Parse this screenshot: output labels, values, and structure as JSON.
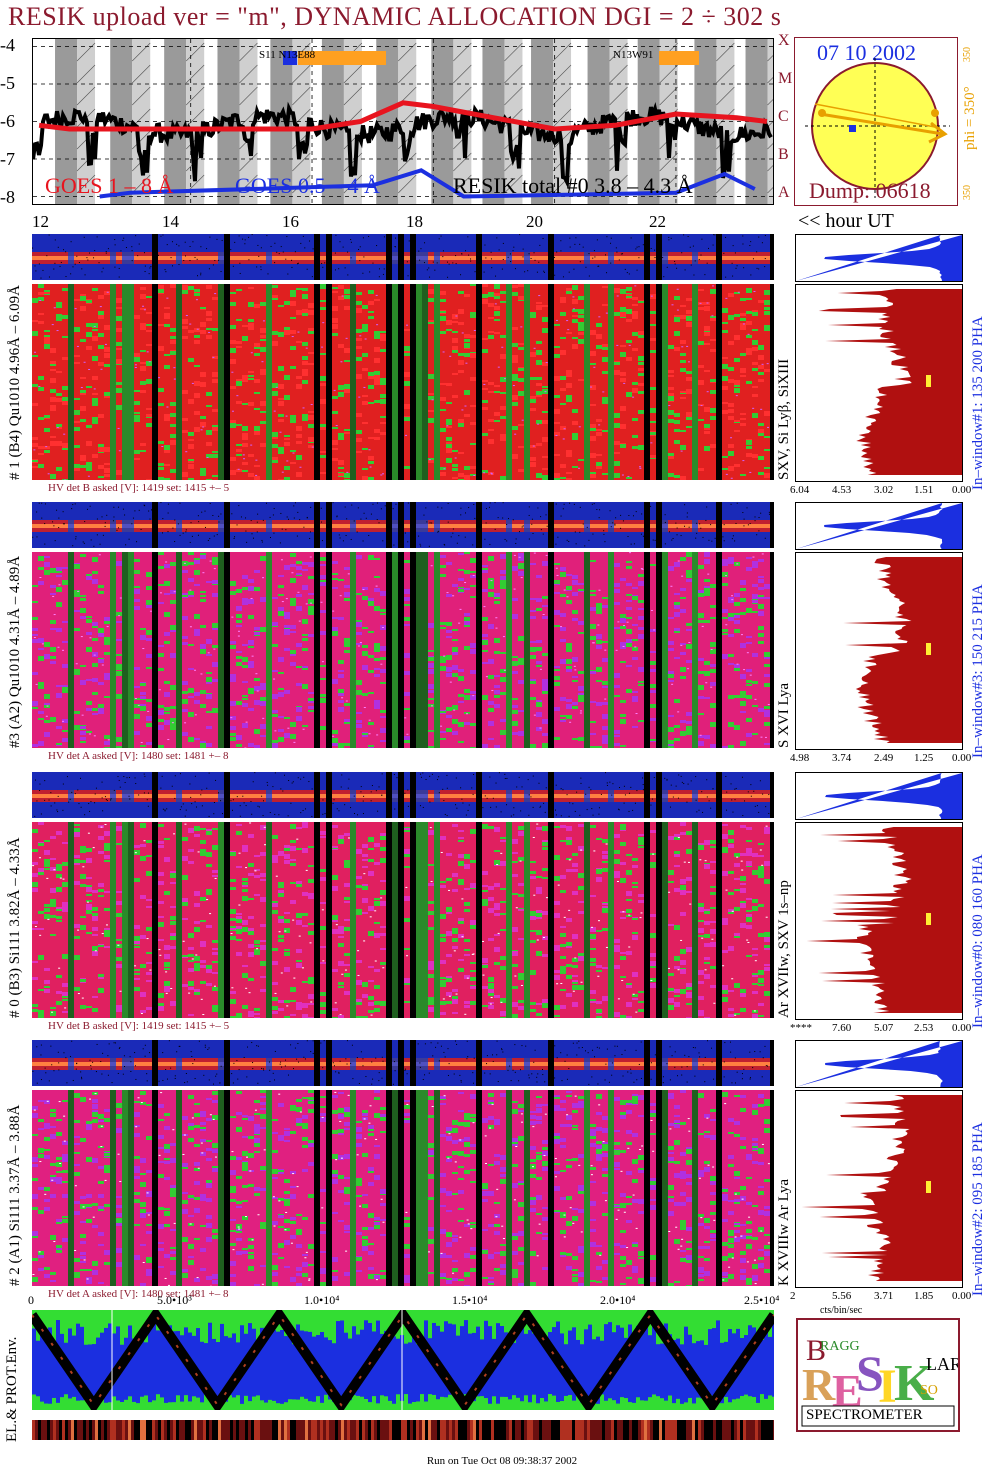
{
  "header": {
    "title": "RESIK upload ver = \"m\", DYNAMIC ALLOCATION  DGI =   2 ÷ 302 s"
  },
  "goes": {
    "yticks": [
      "-4",
      "-5",
      "-6",
      "-7",
      "-8"
    ],
    "legend_goes18": "GOES 1 – 8 Å",
    "legend_goes054": "GOES 0.5 – 4 Å",
    "legend_resik": "RESIK total #0  3.8 – 4.3 Å",
    "class_letters": [
      "X",
      "M",
      "C",
      "B",
      "A"
    ],
    "region_a": "S11 N13E88",
    "region_b": "N13W91",
    "colors": {
      "goes18": "#e8141e",
      "goes054": "#1b2fe0",
      "resik": "#000000"
    }
  },
  "sun": {
    "date": "07 10 2002",
    "phi": "phi = 350°",
    "phi_top": "350",
    "phi_bottom": "350",
    "dump": "Dump: 06618"
  },
  "time_axis": {
    "ticks": [
      "12",
      "14",
      "16",
      "18",
      "20",
      "22"
    ],
    "label": "<< hour UT"
  },
  "channels": [
    {
      "id": "b4",
      "ylabel": "# 1 (B4) Qu1010 4.96Å – 6.09Å",
      "lines_label": "SXV, Si Lyβ, SiXIII",
      "window_label": "In–window#1:  135 200 PHA",
      "hv": "HV det B asked [V]:  1419 set:  1415  +–     5",
      "xticks": [
        "6.04",
        "4.53",
        "3.02",
        "1.51",
        "0.00"
      ]
    },
    {
      "id": "a2",
      "ylabel": "#3 (A2) Qu1010  4.31Å – 4.89Å",
      "lines_label": "S XVI Lya",
      "window_label": "In–window#3:  150 215 PHA",
      "hv": "HV det A asked [V]:  1480 set:  1481  +–     8",
      "xticks": [
        "4.98",
        "3.74",
        "2.49",
        "1.25",
        "0.00"
      ]
    },
    {
      "id": "b3",
      "ylabel": "# 0 (B3) Si111  3.82Å – 4.33Å",
      "lines_label": "Ar XVIIw, SXV 1s–np",
      "window_label": "In–window#0:  080 160 PHA",
      "hv": "HV det B asked [V]:  1419 set:  1415  +–     5",
      "xticks": [
        "****",
        "7.60",
        "5.07",
        "2.53",
        "0.00"
      ]
    },
    {
      "id": "a1",
      "ylabel": "# 2 (A1) Si111  3.37Å – 3.88Å",
      "lines_label": "K XVIIIw  Ar Lya",
      "window_label": "In–window#2:  095 185 PHA",
      "hv": "HV det A asked [V]:  1480 set:  1481  +–     8",
      "xticks": [
        "5.56",
        "3.71",
        "1.85",
        "0.00"
      ],
      "xtick_last_extra": "2"
    }
  ],
  "spectrum_unit": "cts/bin/sec",
  "env": {
    "ylabel": "EL.& PROT.Env.",
    "xticks": [
      "0",
      "5.0•10³",
      "1.0•10⁴",
      "1.5•10⁴",
      "2.0•10⁴",
      "2.5•10⁴"
    ]
  },
  "logo": {
    "letters": "RESIK",
    "bragg": "BRAGG",
    "solar": "SOLAR",
    "spectrometer": "SPECTROMETER"
  },
  "footer": "Run on Tue Oct 08 09:38:37 2002",
  "chart_data": [
    {
      "type": "line",
      "title": "",
      "series": [
        {
          "name": "GOES 1 – 8 Å",
          "x": [
            11.5,
            12,
            13,
            14,
            15,
            16,
            16.8,
            17.5,
            18,
            19,
            20,
            21,
            22,
            23,
            23.5
          ],
          "values": [
            -6.1,
            -6.2,
            -6.2,
            -6.2,
            -6.2,
            -6.2,
            -6.0,
            -5.5,
            -5.6,
            -5.9,
            -6.2,
            -6.1,
            -5.8,
            -5.9,
            -6.0
          ]
        },
        {
          "name": "GOES 0.5 – 4 Å",
          "x": [
            12.5,
            13.0,
            17.0,
            17.8,
            18.5,
            22.0,
            22.8,
            23.3
          ],
          "values": [
            -8.0,
            -7.9,
            -7.7,
            -7.3,
            -8.0,
            -7.9,
            -7.4,
            -7.8
          ]
        }
      ],
      "ylim": [
        -8.2,
        -3.8
      ],
      "xlim": [
        11.4,
        23.6
      ]
    },
    {
      "type": "area",
      "title": "",
      "xlabel": "cts/bin/sec",
      "ylabel": "",
      "legend": "none"
    }
  ]
}
